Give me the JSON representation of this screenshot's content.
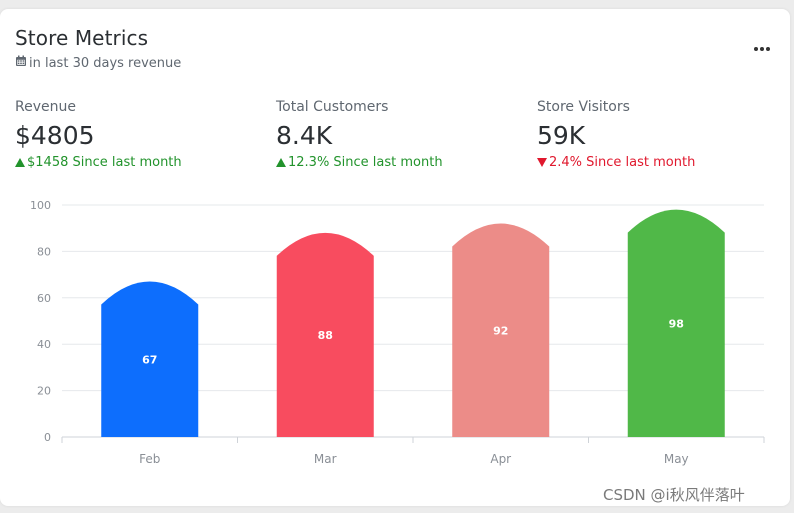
{
  "card": {
    "title": "Store Metrics",
    "subtitle": "in last 30 days revenue",
    "menu_icon": "more-horizontal-icon"
  },
  "metrics": [
    {
      "label": "Revenue",
      "value": "$4805",
      "trend": "up",
      "change": "$1458 Since last month"
    },
    {
      "label": "Total Customers",
      "value": "8.4K",
      "trend": "up",
      "change": "12.3% Since last month"
    },
    {
      "label": "Store Visitors",
      "value": "59K",
      "trend": "down",
      "change": "2.4% Since last month"
    }
  ],
  "chart_data": {
    "type": "bar",
    "categories": [
      "Feb",
      "Mar",
      "Apr",
      "May"
    ],
    "values": [
      67,
      88,
      92,
      98
    ],
    "ylim": [
      0,
      100
    ],
    "yticks": [
      0,
      20,
      40,
      60,
      80,
      100
    ],
    "colors": [
      "#0d6efd",
      "#f84c5f",
      "#ec8c88",
      "#50b848"
    ],
    "data_labels": true,
    "grid": true
  },
  "watermark": "CSDN @i秋风伴落叶"
}
